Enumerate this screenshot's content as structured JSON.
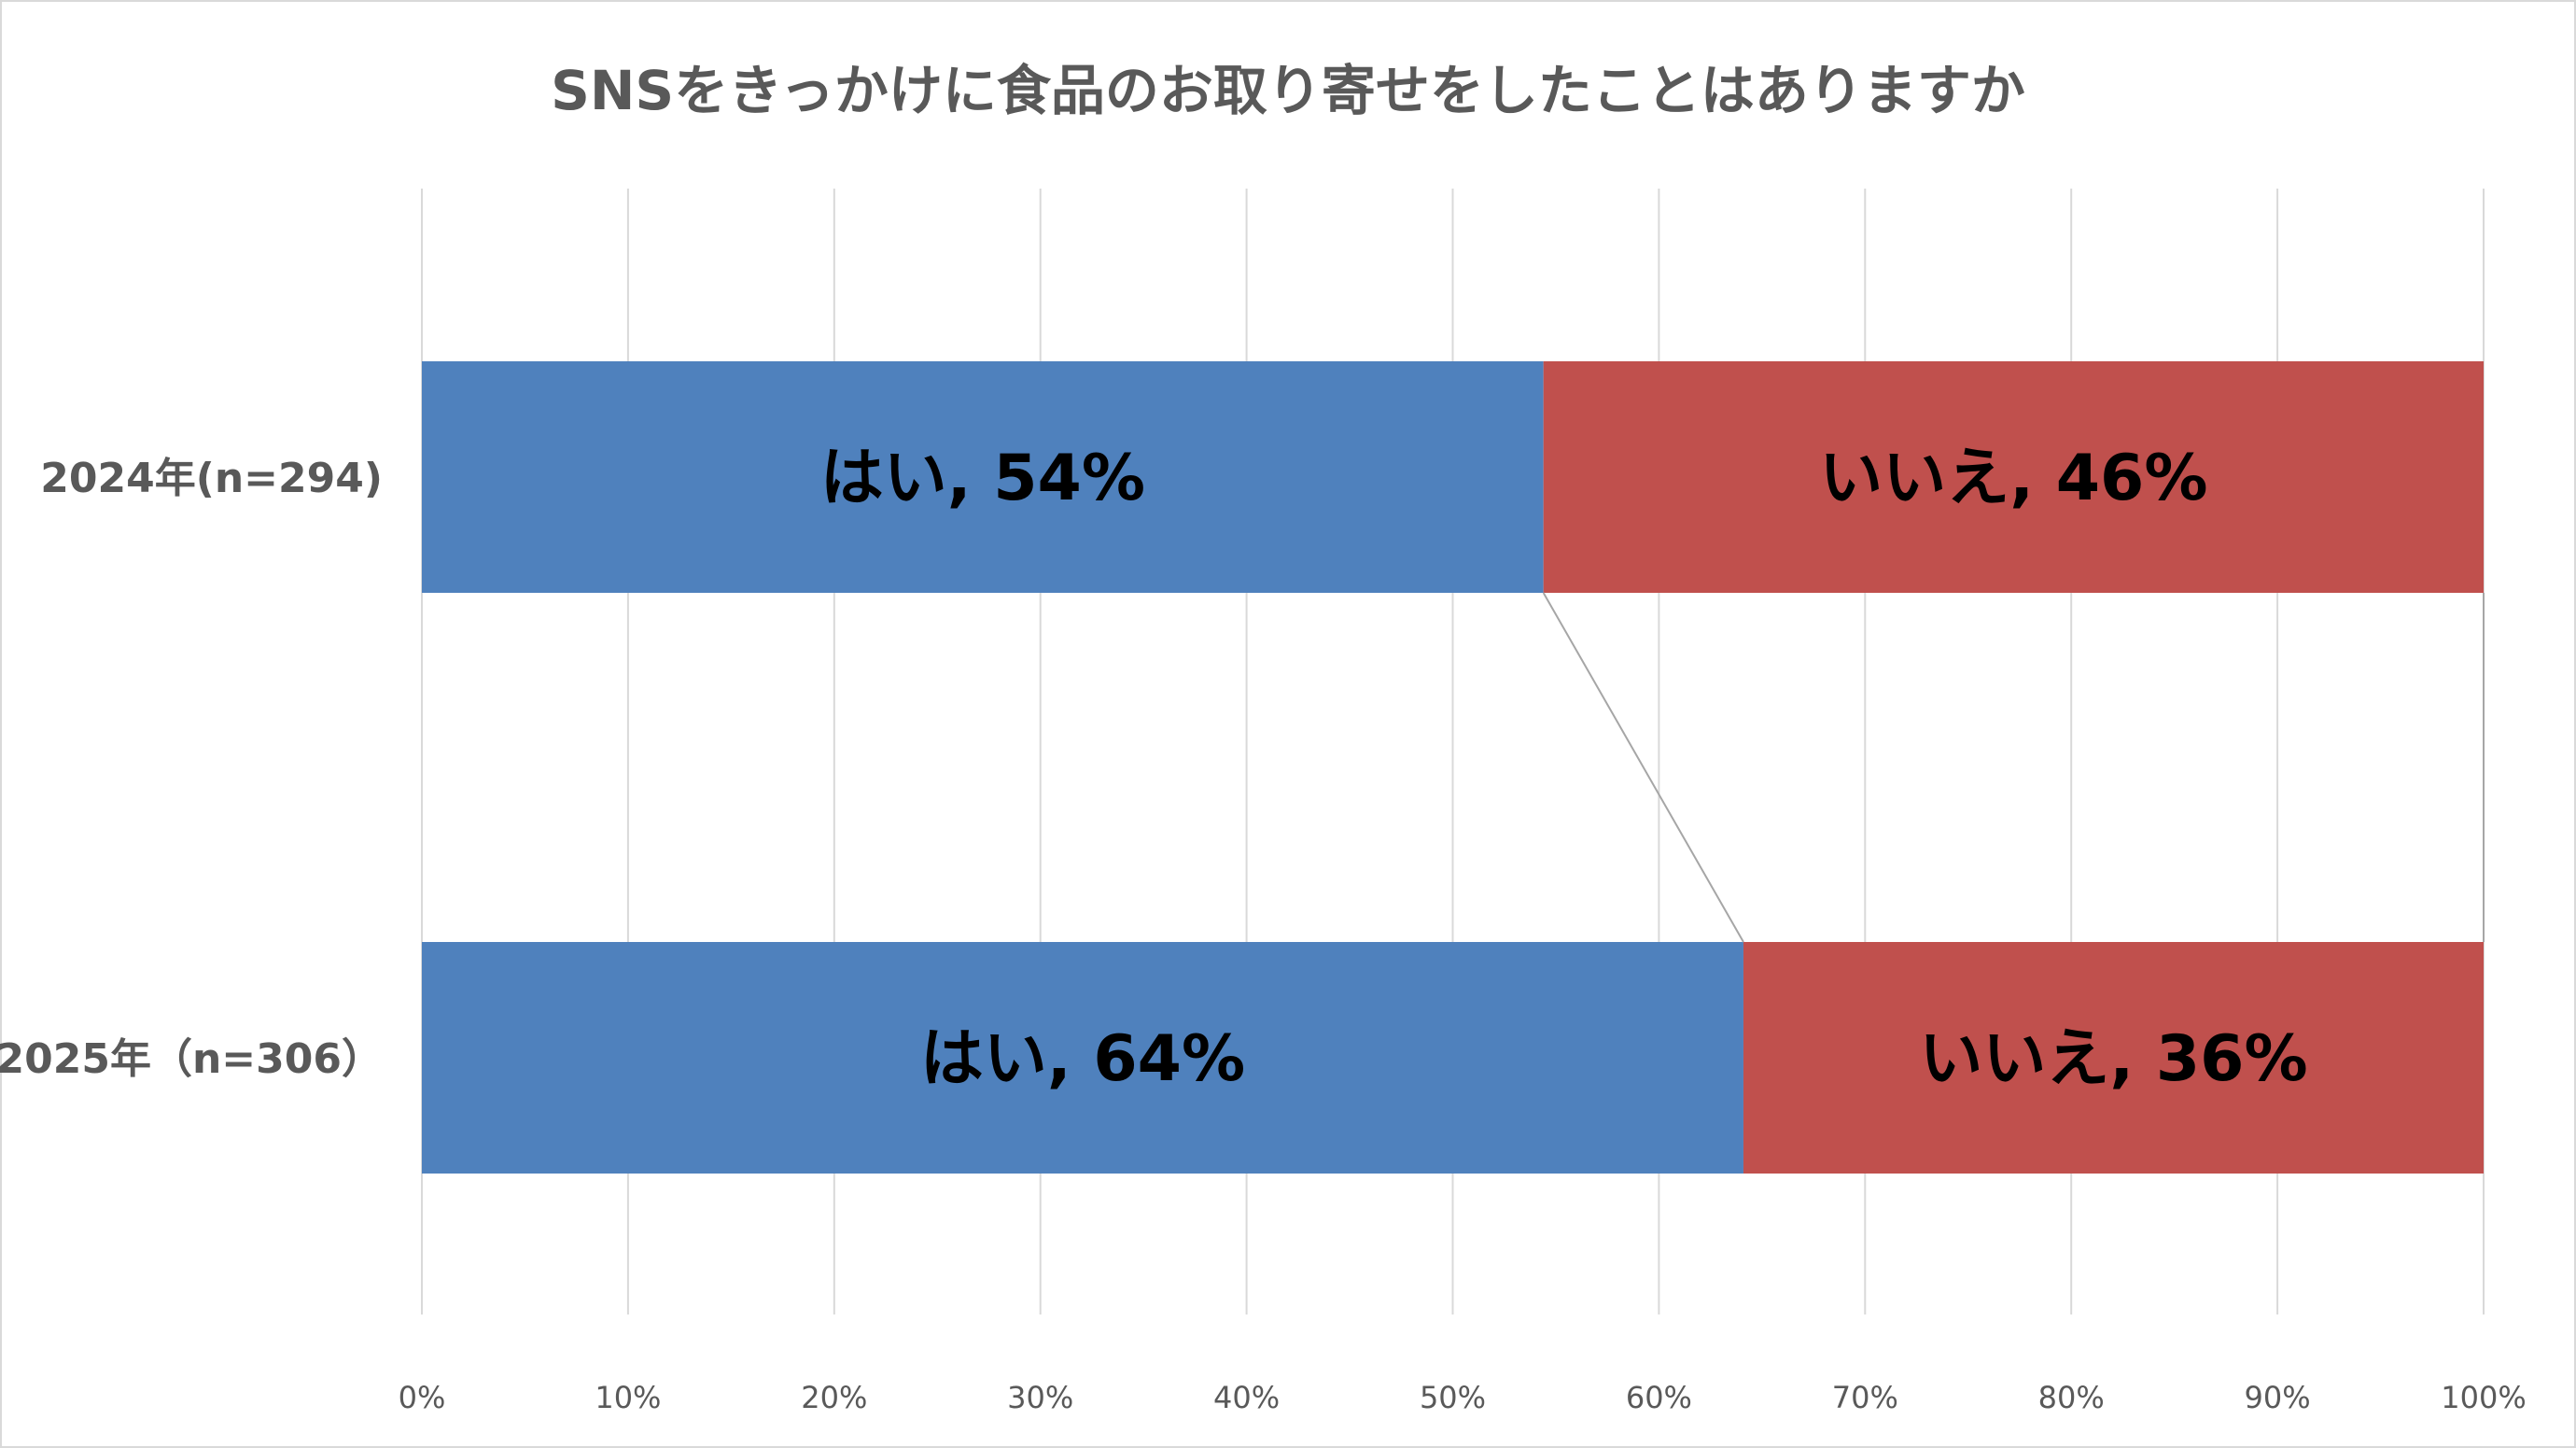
{
  "chart_data": {
    "type": "bar",
    "orientation": "horizontal",
    "stacked": "100%",
    "title": "SNSをきっかけに食品のお取り寄せをしたことはありますか",
    "categories": [
      "2024年(n=294)",
      "2025年（n=306）"
    ],
    "series": [
      {
        "name": "はい",
        "values": [
          54.4,
          64.1
        ],
        "labels": [
          "はい, 54%",
          "はい, 64%"
        ],
        "color": "#4f81bd"
      },
      {
        "name": "いいえ",
        "values": [
          45.6,
          35.9
        ],
        "labels": [
          "いいえ, 46%",
          "いいえ, 36%"
        ],
        "color": "#c0504d"
      }
    ],
    "xlim": [
      0,
      100
    ],
    "xticks": [
      "0%",
      "10%",
      "20%",
      "30%",
      "40%",
      "50%",
      "60%",
      "70%",
      "80%",
      "90%",
      "100%"
    ],
    "grid": "vertical",
    "series_lines": true,
    "legend": "none"
  }
}
